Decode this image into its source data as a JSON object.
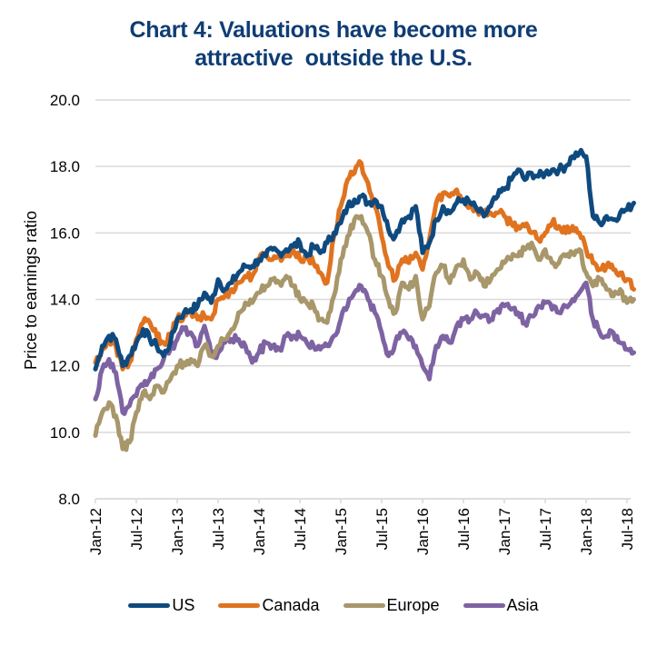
{
  "chart_data": {
    "type": "line",
    "title": [
      "Chart 4: Valuations have become more",
      "attractive  outside the U.S."
    ],
    "xlabel": "",
    "ylabel": "Price to earnings  ratio",
    "ylim": [
      8.0,
      20.0
    ],
    "yticks": [
      "8.0",
      "10.0",
      "12.0",
      "14.0",
      "16.0",
      "18.0",
      "20.0"
    ],
    "ytick_values": [
      8,
      10,
      12,
      14,
      16,
      18,
      20
    ],
    "xticks": [
      "Jan-12",
      "Jul-12",
      "Jan-13",
      "Jul-13",
      "Jan-14",
      "Jul-14",
      "Jan-15",
      "Jul-15",
      "Jan-16",
      "Jul-16",
      "Jan-17",
      "Jul-17",
      "Jan-18",
      "Jul-18"
    ],
    "xtick_months": [
      0,
      6,
      12,
      18,
      24,
      30,
      36,
      42,
      48,
      54,
      60,
      66,
      72,
      78
    ],
    "x_range_months": [
      0,
      79.5
    ],
    "grid": true,
    "legend_position": "bottom",
    "x_note": "monthly observations starting Jan-12 (month index 0)",
    "series": [
      {
        "name": "US",
        "color": "#0f4a7f",
        "values": [
          11.9,
          12.6,
          12.9,
          12.8,
          12.0,
          12.3,
          12.7,
          13.1,
          12.8,
          12.6,
          12.3,
          12.7,
          13.4,
          13.6,
          13.7,
          13.8,
          14.2,
          13.9,
          14.6,
          14.3,
          14.5,
          14.8,
          15.0,
          15.0,
          15.2,
          15.3,
          15.5,
          15.4,
          15.5,
          15.6,
          15.7,
          15.3,
          15.6,
          15.4,
          15.7,
          16.0,
          16.3,
          16.8,
          17.0,
          17.1,
          16.9,
          17.0,
          16.8,
          16.1,
          15.9,
          16.4,
          16.5,
          16.8,
          15.4,
          15.7,
          16.4,
          16.8,
          16.6,
          16.9,
          17.0,
          16.9,
          16.7,
          16.5,
          16.8,
          17.1,
          17.3,
          17.6,
          17.9,
          17.6,
          17.8,
          17.7,
          17.8,
          17.9,
          17.9,
          18.0,
          18.3,
          18.4,
          18.3,
          16.5,
          16.3,
          16.5,
          16.4,
          16.6,
          16.7,
          16.9
        ]
      },
      {
        "name": "Canada",
        "color": "#e0731f",
        "values": [
          12.1,
          12.5,
          12.7,
          12.6,
          11.9,
          12.1,
          12.8,
          13.3,
          13.3,
          12.9,
          12.7,
          12.9,
          13.4,
          13.5,
          13.6,
          13.4,
          13.5,
          13.4,
          14.0,
          14.1,
          14.3,
          14.5,
          14.7,
          14.7,
          15.2,
          15.4,
          15.2,
          15.3,
          15.3,
          15.5,
          15.2,
          15.3,
          15.1,
          14.8,
          14.5,
          15.9,
          16.8,
          17.6,
          17.8,
          18.1,
          17.5,
          16.8,
          15.9,
          15.0,
          14.6,
          15.2,
          15.1,
          15.4,
          14.9,
          15.8,
          16.9,
          17.2,
          17.1,
          17.3,
          17.0,
          16.8,
          16.7,
          16.6,
          16.6,
          16.6,
          16.5,
          16.3,
          16.2,
          16.2,
          16.0,
          15.8,
          16.0,
          16.3,
          16.2,
          16.0,
          16.2,
          16.0,
          15.5,
          15.1,
          14.9,
          15.0,
          14.9,
          14.8,
          14.6,
          14.3
        ]
      },
      {
        "name": "Europe",
        "color": "#a8976a",
        "values": [
          9.9,
          10.6,
          10.9,
          10.5,
          9.5,
          9.7,
          10.6,
          11.2,
          11.0,
          11.4,
          11.2,
          11.6,
          12.0,
          12.1,
          12.2,
          12.0,
          12.6,
          12.3,
          12.6,
          12.8,
          13.1,
          13.6,
          13.9,
          13.9,
          14.2,
          14.4,
          14.6,
          14.5,
          14.7,
          14.4,
          14.0,
          13.9,
          13.8,
          13.4,
          13.3,
          14.1,
          15.2,
          15.9,
          16.4,
          16.5,
          16.0,
          15.2,
          14.7,
          14.0,
          13.6,
          14.5,
          14.3,
          14.7,
          13.4,
          13.8,
          14.8,
          15.0,
          14.5,
          15.0,
          15.2,
          14.6,
          14.8,
          14.4,
          14.6,
          14.9,
          15.1,
          15.2,
          15.3,
          15.5,
          15.7,
          15.2,
          15.5,
          15.1,
          15.1,
          15.3,
          15.4,
          15.5,
          14.8,
          14.4,
          14.6,
          14.3,
          14.1,
          14.3,
          13.9,
          14.0
        ]
      },
      {
        "name": "Asia",
        "color": "#7e63a3",
        "values": [
          11.0,
          11.9,
          12.2,
          11.8,
          10.6,
          10.8,
          11.1,
          11.4,
          11.6,
          11.9,
          12.2,
          12.5,
          12.8,
          13.1,
          13.0,
          12.6,
          13.2,
          12.3,
          12.4,
          12.7,
          12.8,
          12.8,
          12.6,
          12.1,
          12.4,
          12.7,
          12.6,
          12.5,
          12.9,
          12.9,
          12.9,
          12.7,
          12.6,
          12.5,
          12.6,
          12.9,
          13.4,
          13.8,
          14.2,
          14.4,
          14.0,
          13.6,
          13.0,
          12.3,
          12.7,
          13.0,
          12.8,
          12.6,
          12.0,
          11.6,
          12.6,
          12.9,
          12.7,
          13.2,
          13.4,
          13.4,
          13.6,
          13.5,
          13.4,
          13.7,
          13.8,
          13.7,
          13.6,
          13.3,
          13.5,
          13.8,
          13.9,
          13.7,
          13.6,
          13.8,
          14.0,
          14.2,
          14.5,
          13.4,
          13.0,
          12.9,
          13.0,
          12.7,
          12.5,
          12.4
        ]
      }
    ]
  },
  "legend": {
    "items": [
      {
        "label": "US",
        "color": "#0f4a7f"
      },
      {
        "label": "Canada",
        "color": "#e0731f"
      },
      {
        "label": "Europe",
        "color": "#a8976a"
      },
      {
        "label": "Asia",
        "color": "#7e63a3"
      }
    ]
  }
}
